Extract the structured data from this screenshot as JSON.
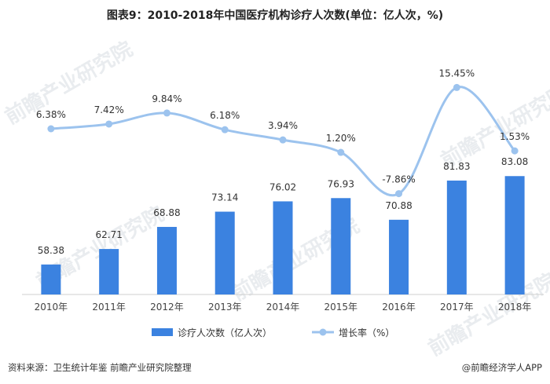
{
  "chart_data": {
    "type": "bar+line",
    "title": "图表9：2010-2018年中国医疗机构诊疗人次数(单位：亿人次，%)",
    "categories": [
      "2010年",
      "2011年",
      "2012年",
      "2013年",
      "2014年",
      "2015年",
      "2016年",
      "2017年",
      "2018年"
    ],
    "series": [
      {
        "name": "诊疗人次数（亿人次）",
        "type": "bar",
        "values": [
          58.38,
          62.71,
          68.88,
          73.14,
          76.02,
          76.93,
          70.88,
          81.83,
          83.08
        ],
        "labels": [
          "58.38",
          "62.71",
          "68.88",
          "73.14",
          "76.02",
          "76.93",
          "70.88",
          "81.83",
          "83.08"
        ]
      },
      {
        "name": "增长率（%）",
        "type": "line",
        "values": [
          6.38,
          7.42,
          9.84,
          6.18,
          3.94,
          1.2,
          -7.86,
          15.45,
          1.53
        ],
        "labels": [
          "6.38%",
          "7.42%",
          "9.84%",
          "6.18%",
          "3.94%",
          "1.20%",
          "-7.86%",
          "15.45%",
          "1.53%"
        ]
      }
    ],
    "bar_ylim": [
      50,
      120
    ],
    "line_ylim": [
      -30,
      25
    ],
    "colors": {
      "bar": "#3b82e0",
      "line": "#9cc3ee"
    }
  },
  "footer": {
    "source": "资料来源：卫生统计年鉴 前瞻产业研究院整理",
    "brand": "@前瞻经济学人APP"
  }
}
